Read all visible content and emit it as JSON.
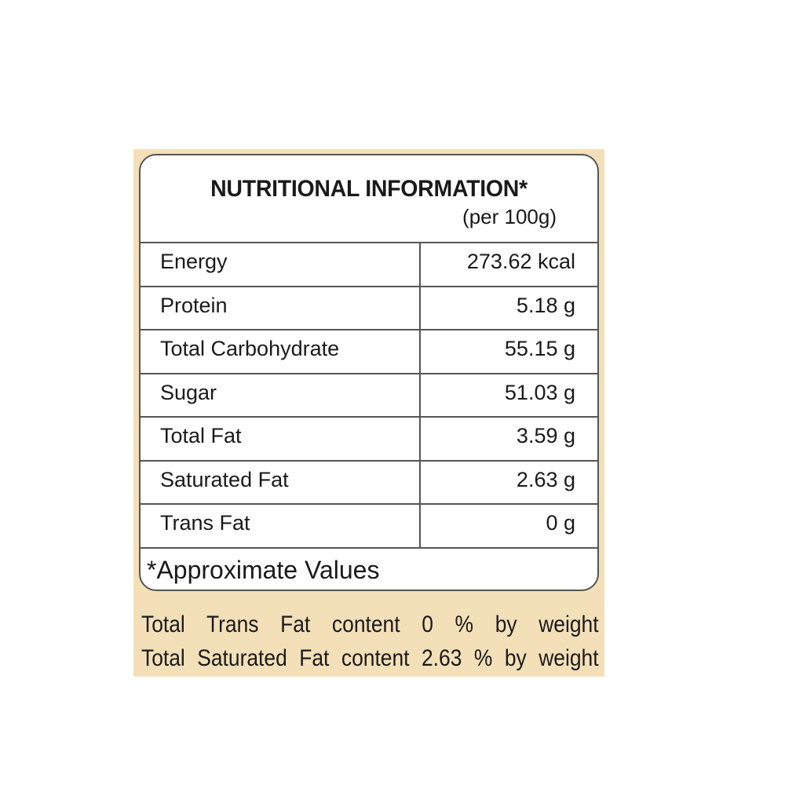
{
  "title": "NUTRITIONAL INFORMATION*",
  "subtitle": "(per 100g)",
  "rows": [
    {
      "label": "Energy",
      "value": "273.62 kcal"
    },
    {
      "label": "Protein",
      "value": "5.18 g"
    },
    {
      "label": "Total Carbohydrate",
      "value": "55.15 g"
    },
    {
      "label": "Sugar",
      "value": "51.03 g"
    },
    {
      "label": "Total Fat",
      "value": "3.59 g"
    },
    {
      "label": "Saturated Fat",
      "value": "2.63 g"
    },
    {
      "label": "Trans Fat",
      "value": "0 g"
    }
  ],
  "footnote": "*Approximate Values",
  "notes": [
    "Total Trans Fat content 0 % by weight",
    "Total Saturated Fat content 2.63 % by weight"
  ],
  "colors": {
    "panel": "#f4e0b8",
    "border": "#555555"
  }
}
